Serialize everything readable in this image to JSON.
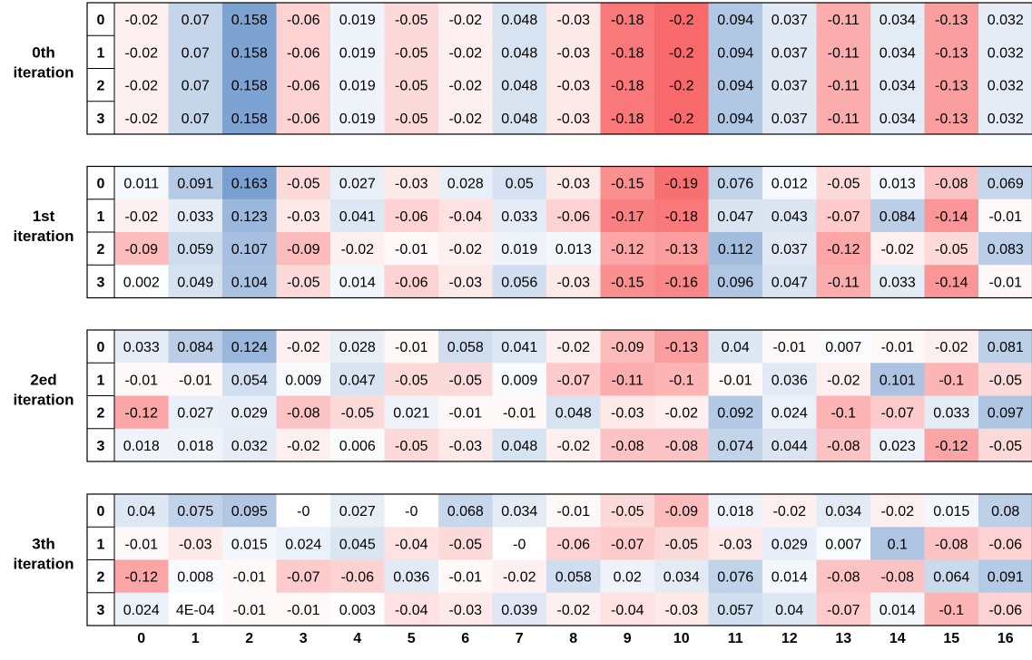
{
  "chart_data": {
    "type": "heatmap",
    "color_scale": {
      "negative": "#f8696b",
      "zero": "#ffffff",
      "positive": "#5a8ac6"
    },
    "columns": [
      "0",
      "1",
      "2",
      "3",
      "4",
      "5",
      "6",
      "7",
      "8",
      "9",
      "10",
      "11",
      "12",
      "13",
      "14",
      "15",
      "16"
    ],
    "panels": [
      {
        "label": [
          "0th",
          "iteration"
        ],
        "rows": [
          "0",
          "1",
          "2",
          "3"
        ],
        "values": [
          [
            -0.02,
            0.07,
            0.158,
            -0.06,
            0.019,
            -0.05,
            -0.02,
            0.048,
            -0.03,
            -0.18,
            -0.2,
            0.094,
            0.037,
            -0.11,
            0.034,
            -0.13,
            0.032
          ],
          [
            -0.02,
            0.07,
            0.158,
            -0.06,
            0.019,
            -0.05,
            -0.02,
            0.048,
            -0.03,
            -0.18,
            -0.2,
            0.094,
            0.037,
            -0.11,
            0.034,
            -0.13,
            0.032
          ],
          [
            -0.02,
            0.07,
            0.158,
            -0.06,
            0.019,
            -0.05,
            -0.02,
            0.048,
            -0.03,
            -0.18,
            -0.2,
            0.094,
            0.037,
            -0.11,
            0.034,
            -0.13,
            0.032
          ],
          [
            -0.02,
            0.07,
            0.158,
            -0.06,
            0.019,
            -0.05,
            -0.02,
            0.048,
            -0.03,
            -0.18,
            -0.2,
            0.094,
            0.037,
            -0.11,
            0.034,
            -0.13,
            0.032
          ]
        ],
        "labels": [
          [
            "-0.02",
            "0.07",
            "0.158",
            "-0.06",
            "0.019",
            "-0.05",
            "-0.02",
            "0.048",
            "-0.03",
            "-0.18",
            "-0.2",
            "0.094",
            "0.037",
            "-0.11",
            "0.034",
            "-0.13",
            "0.032"
          ],
          [
            "-0.02",
            "0.07",
            "0.158",
            "-0.06",
            "0.019",
            "-0.05",
            "-0.02",
            "0.048",
            "-0.03",
            "-0.18",
            "-0.2",
            "0.094",
            "0.037",
            "-0.11",
            "0.034",
            "-0.13",
            "0.032"
          ],
          [
            "-0.02",
            "0.07",
            "0.158",
            "-0.06",
            "0.019",
            "-0.05",
            "-0.02",
            "0.048",
            "-0.03",
            "-0.18",
            "-0.2",
            "0.094",
            "0.037",
            "-0.11",
            "0.034",
            "-0.13",
            "0.032"
          ],
          [
            "-0.02",
            "0.07",
            "0.158",
            "-0.06",
            "0.019",
            "-0.05",
            "-0.02",
            "0.048",
            "-0.03",
            "-0.18",
            "-0.2",
            "0.094",
            "0.037",
            "-0.11",
            "0.034",
            "-0.13",
            "0.032"
          ]
        ]
      },
      {
        "label": [
          "1st",
          "iteration"
        ],
        "rows": [
          "0",
          "1",
          "2",
          "3"
        ],
        "values": [
          [
            0.011,
            0.091,
            0.163,
            -0.05,
            0.027,
            -0.03,
            0.028,
            0.05,
            -0.03,
            -0.15,
            -0.19,
            0.076,
            0.012,
            -0.05,
            0.013,
            -0.08,
            0.069
          ],
          [
            -0.02,
            0.033,
            0.123,
            -0.03,
            0.041,
            -0.06,
            -0.04,
            0.033,
            -0.06,
            -0.17,
            -0.18,
            0.047,
            0.043,
            -0.07,
            0.084,
            -0.14,
            -0.01
          ],
          [
            -0.09,
            0.059,
            0.107,
            -0.09,
            -0.02,
            -0.01,
            -0.02,
            0.019,
            0.013,
            -0.12,
            -0.13,
            0.112,
            0.037,
            -0.12,
            -0.02,
            -0.05,
            0.083
          ],
          [
            0.002,
            0.049,
            0.104,
            -0.05,
            0.014,
            -0.06,
            -0.03,
            0.056,
            -0.03,
            -0.15,
            -0.16,
            0.096,
            0.047,
            -0.11,
            0.033,
            -0.14,
            -0.01
          ]
        ],
        "labels": [
          [
            "0.011",
            "0.091",
            "0.163",
            "-0.05",
            "0.027",
            "-0.03",
            "0.028",
            "0.05",
            "-0.03",
            "-0.15",
            "-0.19",
            "0.076",
            "0.012",
            "-0.05",
            "0.013",
            "-0.08",
            "0.069"
          ],
          [
            "-0.02",
            "0.033",
            "0.123",
            "-0.03",
            "0.041",
            "-0.06",
            "-0.04",
            "0.033",
            "-0.06",
            "-0.17",
            "-0.18",
            "0.047",
            "0.043",
            "-0.07",
            "0.084",
            "-0.14",
            "-0.01"
          ],
          [
            "-0.09",
            "0.059",
            "0.107",
            "-0.09",
            "-0.02",
            "-0.01",
            "-0.02",
            "0.019",
            "0.013",
            "-0.12",
            "-0.13",
            "0.112",
            "0.037",
            "-0.12",
            "-0.02",
            "-0.05",
            "0.083"
          ],
          [
            "0.002",
            "0.049",
            "0.104",
            "-0.05",
            "0.014",
            "-0.06",
            "-0.03",
            "0.056",
            "-0.03",
            "-0.15",
            "-0.16",
            "0.096",
            "0.047",
            "-0.11",
            "0.033",
            "-0.14",
            "-0.01"
          ]
        ]
      },
      {
        "label": [
          "2ed",
          "iteration"
        ],
        "rows": [
          "0",
          "1",
          "2",
          "3"
        ],
        "values": [
          [
            0.033,
            0.084,
            0.124,
            -0.02,
            0.028,
            -0.01,
            0.058,
            0.041,
            -0.02,
            -0.09,
            -0.13,
            0.04,
            -0.01,
            0.007,
            -0.01,
            -0.02,
            0.081
          ],
          [
            -0.01,
            -0.01,
            0.054,
            0.009,
            0.047,
            -0.05,
            -0.05,
            0.009,
            -0.07,
            -0.11,
            -0.1,
            -0.01,
            0.036,
            -0.02,
            0.101,
            -0.1,
            -0.05
          ],
          [
            -0.12,
            0.027,
            0.029,
            -0.08,
            -0.05,
            0.021,
            -0.01,
            -0.01,
            0.048,
            -0.03,
            -0.02,
            0.092,
            0.024,
            -0.1,
            -0.07,
            0.033,
            0.097
          ],
          [
            0.018,
            0.018,
            0.032,
            -0.02,
            0.006,
            -0.05,
            -0.03,
            0.048,
            -0.02,
            -0.08,
            -0.08,
            0.074,
            0.044,
            -0.08,
            0.023,
            -0.12,
            -0.05
          ]
        ],
        "labels": [
          [
            "0.033",
            "0.084",
            "0.124",
            "-0.02",
            "0.028",
            "-0.01",
            "0.058",
            "0.041",
            "-0.02",
            "-0.09",
            "-0.13",
            "0.04",
            "-0.01",
            "0.007",
            "-0.01",
            "-0.02",
            "0.081"
          ],
          [
            "-0.01",
            "-0.01",
            "0.054",
            "0.009",
            "0.047",
            "-0.05",
            "-0.05",
            "0.009",
            "-0.07",
            "-0.11",
            "-0.1",
            "-0.01",
            "0.036",
            "-0.02",
            "0.101",
            "-0.1",
            "-0.05"
          ],
          [
            "-0.12",
            "0.027",
            "0.029",
            "-0.08",
            "-0.05",
            "0.021",
            "-0.01",
            "-0.01",
            "0.048",
            "-0.03",
            "-0.02",
            "0.092",
            "0.024",
            "-0.1",
            "-0.07",
            "0.033",
            "0.097"
          ],
          [
            "0.018",
            "0.018",
            "0.032",
            "-0.02",
            "0.006",
            "-0.05",
            "-0.03",
            "0.048",
            "-0.02",
            "-0.08",
            "-0.08",
            "0.074",
            "0.044",
            "-0.08",
            "0.023",
            "-0.12",
            "-0.05"
          ]
        ]
      },
      {
        "label": [
          "3th",
          "iteration"
        ],
        "rows": [
          "0",
          "1",
          "2",
          "3"
        ],
        "values": [
          [
            0.04,
            0.075,
            0.095,
            0,
            0.027,
            0,
            0.068,
            0.034,
            -0.01,
            -0.05,
            -0.09,
            0.018,
            -0.02,
            0.034,
            -0.02,
            0.015,
            0.08
          ],
          [
            -0.01,
            -0.03,
            0.015,
            0.024,
            0.045,
            -0.04,
            -0.05,
            0,
            -0.06,
            -0.07,
            -0.05,
            -0.03,
            0.029,
            0.007,
            0.1,
            -0.08,
            -0.06
          ],
          [
            -0.12,
            0.008,
            -0.01,
            -0.07,
            -0.06,
            0.036,
            -0.01,
            -0.02,
            0.058,
            0.02,
            0.034,
            0.076,
            0.014,
            -0.08,
            -0.08,
            0.064,
            0.091
          ],
          [
            0.024,
            0.0004,
            -0.01,
            -0.01,
            0.003,
            -0.04,
            -0.03,
            0.039,
            -0.02,
            -0.04,
            -0.03,
            0.057,
            0.04,
            -0.07,
            0.014,
            -0.1,
            -0.06
          ]
        ],
        "labels": [
          [
            "0.04",
            "0.075",
            "0.095",
            "-0",
            "0.027",
            "-0",
            "0.068",
            "0.034",
            "-0.01",
            "-0.05",
            "-0.09",
            "0.018",
            "-0.02",
            "0.034",
            "-0.02",
            "0.015",
            "0.08"
          ],
          [
            "-0.01",
            "-0.03",
            "0.015",
            "0.024",
            "0.045",
            "-0.04",
            "-0.05",
            "-0",
            "-0.06",
            "-0.07",
            "-0.05",
            "-0.03",
            "0.029",
            "0.007",
            "0.1",
            "-0.08",
            "-0.06"
          ],
          [
            "-0.12",
            "0.008",
            "-0.01",
            "-0.07",
            "-0.06",
            "0.036",
            "-0.01",
            "-0.02",
            "0.058",
            "0.02",
            "0.034",
            "0.076",
            "0.014",
            "-0.08",
            "-0.08",
            "0.064",
            "0.091"
          ],
          [
            "0.024",
            "4E-04",
            "-0.01",
            "-0.01",
            "0.003",
            "-0.04",
            "-0.03",
            "0.039",
            "-0.02",
            "-0.04",
            "-0.03",
            "0.057",
            "0.04",
            "-0.07",
            "0.014",
            "-0.1",
            "-0.06"
          ]
        ]
      }
    ]
  }
}
